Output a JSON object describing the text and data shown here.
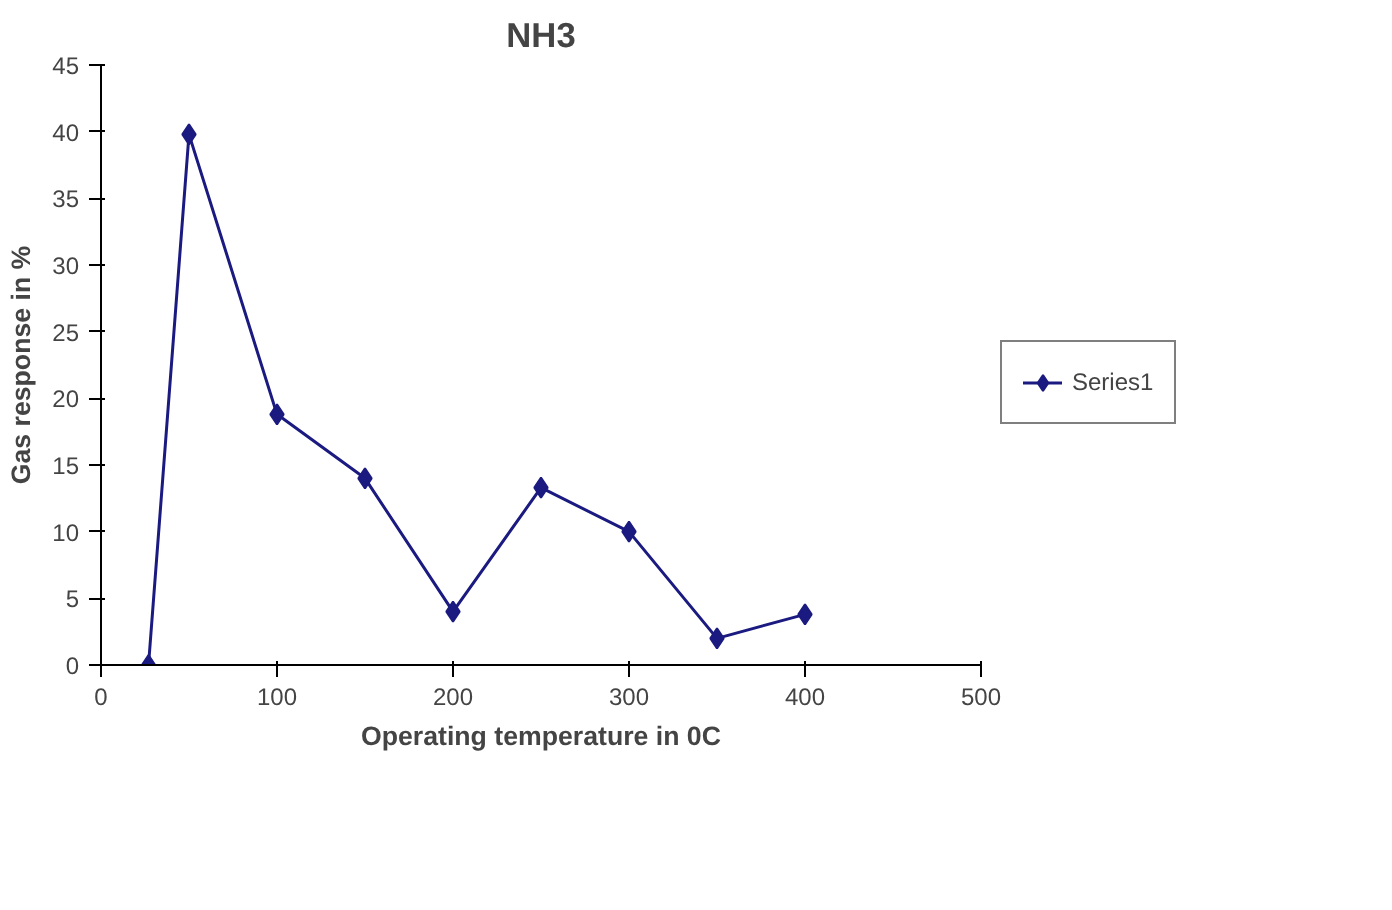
{
  "chart_data": {
    "type": "line",
    "title": "NH3",
    "xlabel": "Operating temperature in 0C",
    "ylabel": "Gas response in %",
    "x": [
      27,
      50,
      100,
      150,
      200,
      250,
      300,
      350,
      400
    ],
    "series": [
      {
        "name": "Series1",
        "color": "#1a1a80",
        "values": [
          0,
          39.8,
          18.8,
          14,
          4,
          13.3,
          10,
          2,
          3.8
        ]
      }
    ],
    "xlim": [
      0,
      500
    ],
    "xticks": [
      0,
      100,
      200,
      300,
      400,
      500
    ],
    "ylim": [
      0,
      45
    ],
    "yticks": [
      0,
      5,
      10,
      15,
      20,
      25,
      30,
      35,
      40,
      45
    ],
    "grid": false,
    "legend": "right",
    "marker": "diamond",
    "line_style": "solid"
  }
}
